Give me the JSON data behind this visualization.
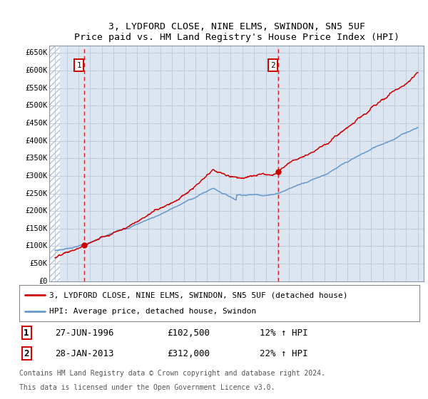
{
  "title": "3, LYDFORD CLOSE, NINE ELMS, SWINDON, SN5 5UF",
  "subtitle": "Price paid vs. HM Land Registry's House Price Index (HPI)",
  "ylim": [
    0,
    670000
  ],
  "yticks": [
    0,
    50000,
    100000,
    150000,
    200000,
    250000,
    300000,
    350000,
    400000,
    450000,
    500000,
    550000,
    600000,
    650000
  ],
  "ytick_labels": [
    "£0",
    "£50K",
    "£100K",
    "£150K",
    "£200K",
    "£250K",
    "£300K",
    "£350K",
    "£400K",
    "£450K",
    "£500K",
    "£550K",
    "£600K",
    "£650K"
  ],
  "xlim_start": 1993.5,
  "xlim_end": 2025.5,
  "xticks": [
    1994,
    1995,
    1996,
    1997,
    1998,
    1999,
    2000,
    2001,
    2002,
    2003,
    2004,
    2005,
    2006,
    2007,
    2008,
    2009,
    2010,
    2011,
    2012,
    2013,
    2014,
    2015,
    2016,
    2017,
    2018,
    2019,
    2020,
    2021,
    2022,
    2023,
    2024,
    2025
  ],
  "sale1_x": 1996.49,
  "sale1_y": 102500,
  "sale2_x": 2013.08,
  "sale2_y": 312000,
  "sale_color": "#cc0000",
  "hpi_color": "#6699cc",
  "background_color": "#dde5f0",
  "legend_label_red": "3, LYDFORD CLOSE, NINE ELMS, SWINDON, SN5 5UF (detached house)",
  "legend_label_blue": "HPI: Average price, detached house, Swindon",
  "footer_line1": "Contains HM Land Registry data © Crown copyright and database right 2024.",
  "footer_line2": "This data is licensed under the Open Government Licence v3.0.",
  "table_row1": [
    "1",
    "27-JUN-1996",
    "£102,500",
    "12% ↑ HPI"
  ],
  "table_row2": [
    "2",
    "28-JAN-2013",
    "£312,000",
    "22% ↑ HPI"
  ]
}
